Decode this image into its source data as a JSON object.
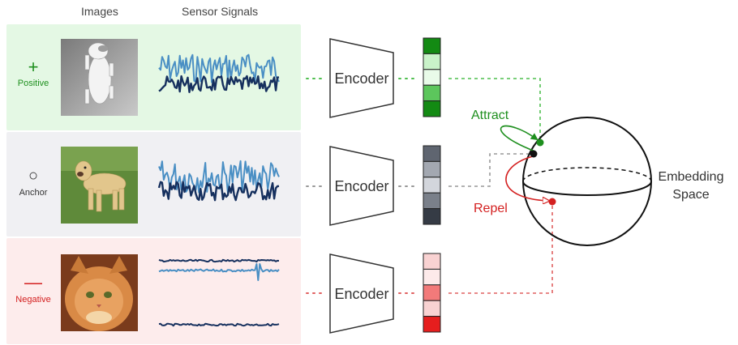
{
  "headers": {
    "images": "Images",
    "sensor_signals": "Sensor Signals"
  },
  "rows": [
    {
      "label": "Positive",
      "symbol": "+",
      "color": "#1e8f1e",
      "panel_color": "#e4f8e4",
      "encoder": "Encoder",
      "embedding_cells": [
        "#138a13",
        "#c9f2c9",
        "#e9fbe9",
        "#5cc65c",
        "#138a13"
      ]
    },
    {
      "label": "Anchor",
      "symbol": "○",
      "color": "#333333",
      "panel_color": "#f0f0f3",
      "encoder": "Encoder",
      "embedding_cells": [
        "#5f6570",
        "#a3a8b1",
        "#d3d6dc",
        "#7a808a",
        "#353b45"
      ]
    },
    {
      "label": "Negative",
      "symbol": "—",
      "color": "#d42020",
      "panel_color": "#fdecec",
      "encoder": "Encoder",
      "embedding_cells": [
        "#f9d2d2",
        "#fdeaea",
        "#f27a7a",
        "#f9d2d2",
        "#e61e1e"
      ]
    }
  ],
  "embedding_space": {
    "line1": "Embedding",
    "line2": "Space"
  },
  "attract_label": "Attract",
  "repel_label": "Repel",
  "colors": {
    "green": "#1e8f1e",
    "red": "#d42020",
    "gray": "#888888",
    "signal_light": "#4a8fc4",
    "signal_dark": "#16305e"
  }
}
